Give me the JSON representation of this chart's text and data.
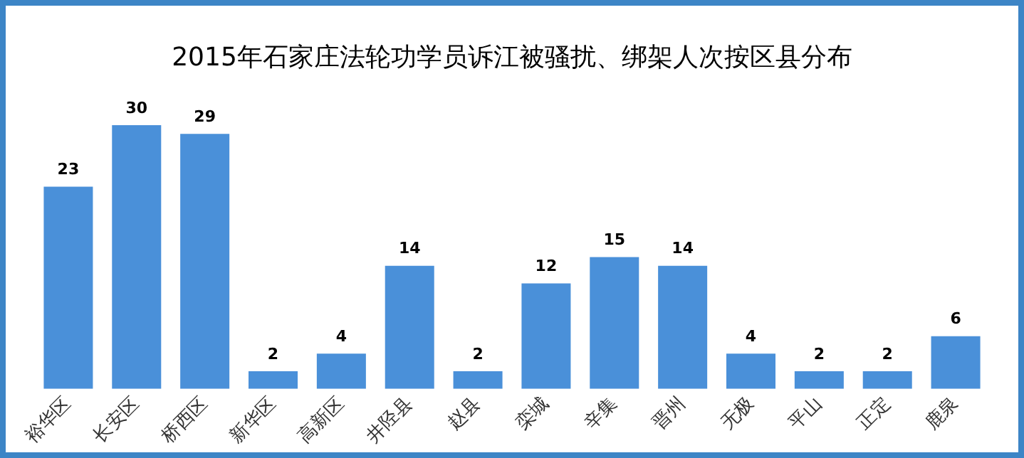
{
  "chart_data": {
    "type": "bar",
    "title": "2015年石家庄法轮功学员诉江被骚扰、绑架人次按区县分布",
    "categories": [
      "裕华区",
      "长安区",
      "桥西区",
      "新华区",
      "高新区",
      "井陉县",
      "赵县",
      "栾城",
      "辛集",
      "晋州",
      "无极",
      "平山",
      "正定",
      "鹿泉"
    ],
    "values": [
      23,
      30,
      29,
      2,
      4,
      14,
      2,
      12,
      15,
      14,
      4,
      2,
      2,
      6
    ],
    "color": "#4a90d9",
    "data_labels": true,
    "grid": false,
    "legend": false
  }
}
